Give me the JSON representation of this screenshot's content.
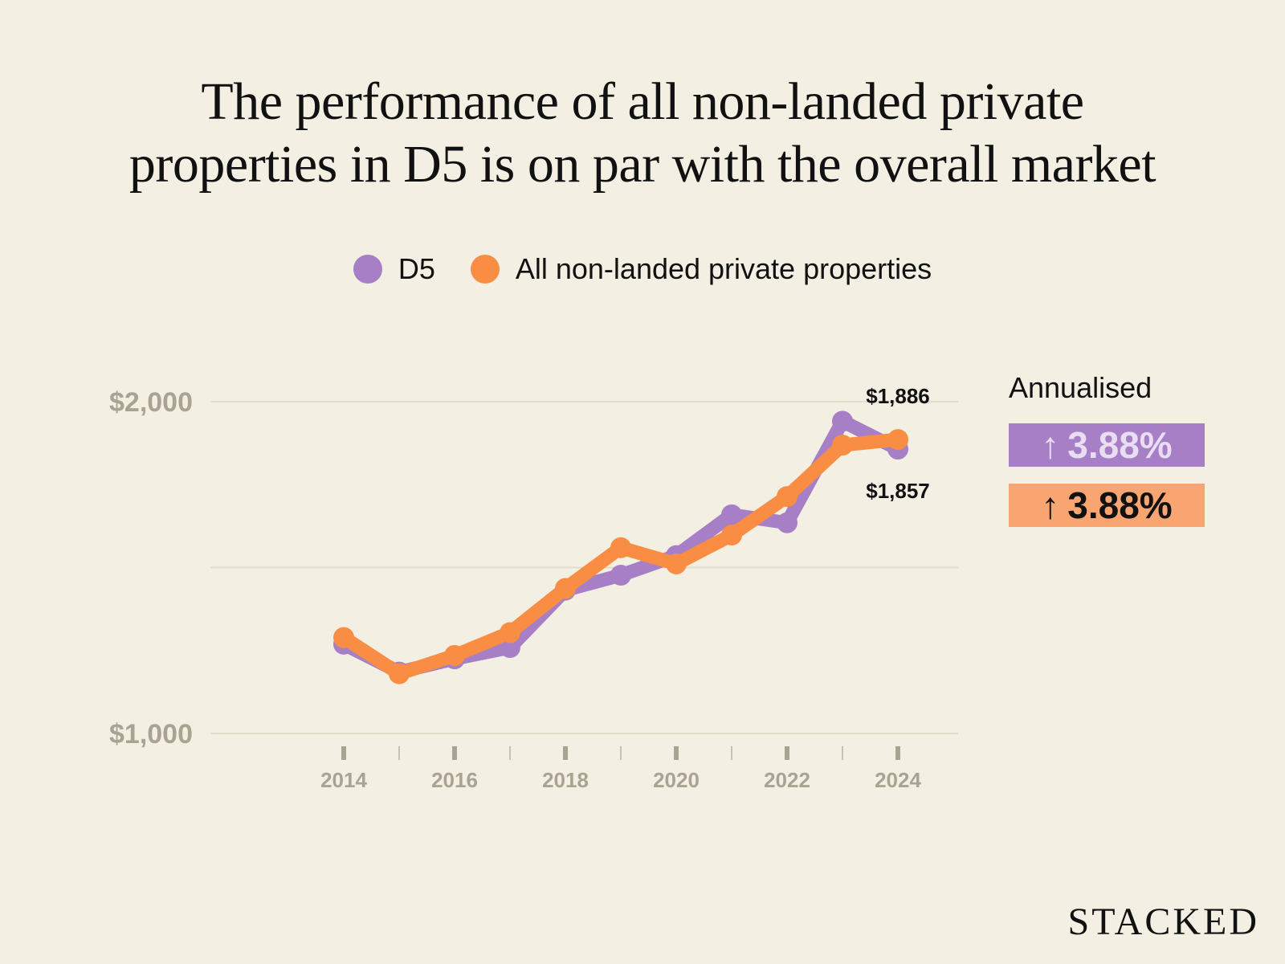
{
  "chart_data": {
    "type": "line",
    "title": "The performance of all non-landed private properties in D5 is on par with the overall market",
    "title_lines": [
      "The performance of all non-landed private",
      "properties in D5 is on par with the overall market"
    ],
    "x": [
      2014,
      2015,
      2016,
      2017,
      2018,
      2019,
      2020,
      2021,
      2022,
      2023,
      2024
    ],
    "x_tick_labels": [
      "2014",
      "2016",
      "2018",
      "2020",
      "2022",
      "2024"
    ],
    "y_tick_labels": [
      "$2,000",
      "$1,000"
    ],
    "y_ticks": [
      2000,
      1500,
      1000
    ],
    "ylim": [
      1000,
      2000
    ],
    "xlabel": "",
    "ylabel": "",
    "grid": true,
    "legend_position": "top-center",
    "series": [
      {
        "name": "D5",
        "color": "#a67fc6",
        "values": [
          1269,
          1185,
          1225,
          1259,
          1432,
          1477,
          1536,
          1659,
          1635,
          1941,
          1857
        ]
      },
      {
        "name": "All non-landed private properties",
        "color": "#f98d44",
        "values": [
          1289,
          1180,
          1235,
          1304,
          1437,
          1560,
          1511,
          1598,
          1714,
          1869,
          1886
        ]
      }
    ],
    "end_labels": [
      {
        "series": "All non-landed private properties",
        "text": "$1,886"
      },
      {
        "series": "D5",
        "text": "$1,857"
      }
    ]
  },
  "annualised": {
    "label": "Annualised",
    "items": [
      {
        "series": "D5",
        "arrow": "↑",
        "value": "3.88%",
        "bg": "#a67fc6",
        "fg": "#e9ddf2"
      },
      {
        "series": "All non-landed private properties",
        "arrow": "↑",
        "value": "3.88%",
        "bg": "#f9a572",
        "fg": "#111111"
      }
    ]
  },
  "brand": "STACKED"
}
